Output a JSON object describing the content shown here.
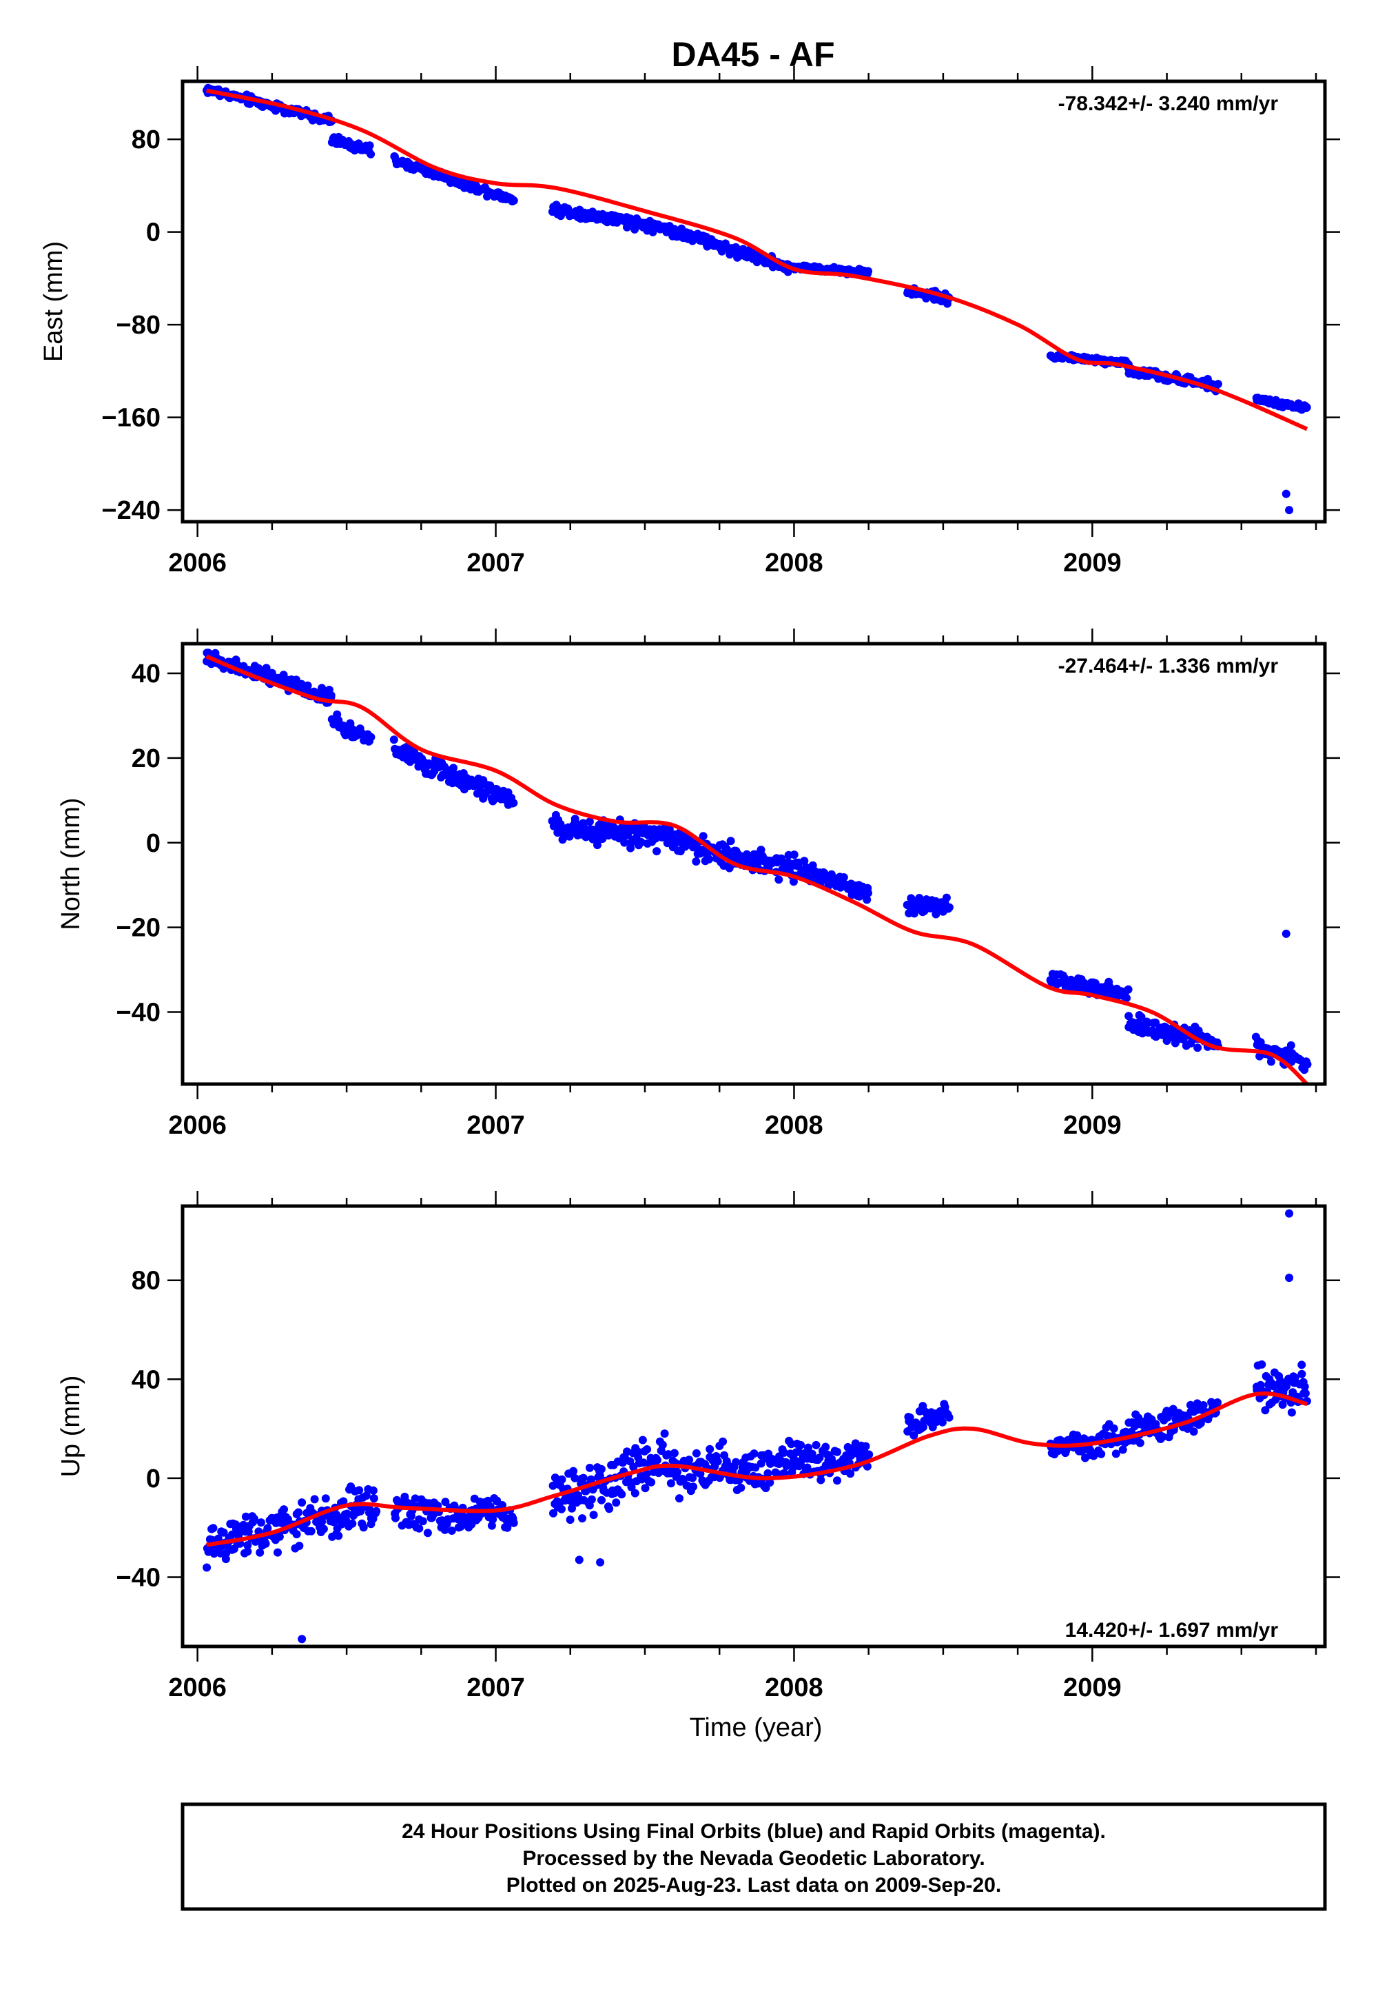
{
  "title": "DA45 - AF",
  "colors": {
    "final_orbits": "#0000ff",
    "fit_curve": "#ff0000",
    "frame": "#000000"
  },
  "footer": {
    "line1": "24 Hour Positions Using Final Orbits (blue) and Rapid Orbits (magenta).",
    "line2": "Processed by the Nevada Geodetic Laboratory.",
    "line3": "Plotted on 2025-Aug-23. Last data on 2009-Sep-20."
  },
  "chart_data": [
    {
      "type": "scatter",
      "title": "DA45 - AF",
      "xlabel": "",
      "ylabel": "East (mm)",
      "xlim": [
        2005.95,
        2009.78
      ],
      "ylim": [
        -250,
        130
      ],
      "xticks": [
        2006,
        2007,
        2008,
        2009
      ],
      "yticks": [
        -240,
        -160,
        -80,
        0,
        80
      ],
      "rate_text": "-78.342+/- 3.240 mm/yr",
      "series": [
        {
          "role": "daily positions (final orbits)",
          "segments": [
            {
              "x": [
                2006.03,
                2006.45
              ],
              "y": [
                123,
                96
              ],
              "noise": 3
            },
            {
              "x": [
                2006.45,
                2006.58
              ],
              "y": [
                80,
                70
              ],
              "noise": 3
            },
            {
              "x": [
                2006.66,
                2007.06
              ],
              "y": [
                62,
                28
              ],
              "noise": 3
            },
            {
              "x": [
                2007.19,
                2007.6
              ],
              "y": [
                20,
                2
              ],
              "noise": 4
            },
            {
              "x": [
                2007.6,
                2007.98
              ],
              "y": [
                0,
                -30
              ],
              "noise": 4
            },
            {
              "x": [
                2007.98,
                2008.25
              ],
              "y": [
                -30,
                -35
              ],
              "noise": 2
            },
            {
              "x": [
                2008.38,
                2008.52
              ],
              "y": [
                -50,
                -58
              ],
              "noise": 3
            },
            {
              "x": [
                2008.86,
                2009.12
              ],
              "y": [
                -107,
                -113
              ],
              "noise": 2
            },
            {
              "x": [
                2009.12,
                2009.42
              ],
              "y": [
                -120,
                -133
              ],
              "noise": 3
            },
            {
              "x": [
                2009.55,
                2009.72
              ],
              "y": [
                -145,
                -152
              ],
              "noise": 2
            }
          ],
          "outliers": [
            {
              "x": 2009.65,
              "y": -226
            },
            {
              "x": 2009.66,
              "y": -240
            }
          ]
        },
        {
          "role": "fit",
          "x": [
            2006.03,
            2006.3,
            2006.55,
            2006.8,
            2007.0,
            2007.2,
            2007.5,
            2007.8,
            2008.0,
            2008.2,
            2008.5,
            2008.75,
            2008.95,
            2009.1,
            2009.4,
            2009.72
          ],
          "y": [
            122,
            108,
            88,
            55,
            42,
            38,
            18,
            -5,
            -32,
            -38,
            -55,
            -80,
            -110,
            -115,
            -135,
            -170
          ]
        }
      ]
    },
    {
      "type": "scatter",
      "xlabel": "",
      "ylabel": "North (mm)",
      "xlim": [
        2005.95,
        2009.78
      ],
      "ylim": [
        -57,
        47
      ],
      "xticks": [
        2006,
        2007,
        2008,
        2009
      ],
      "yticks": [
        -40,
        -20,
        0,
        20,
        40
      ],
      "rate_text": "-27.464+/- 1.336 mm/yr",
      "series": [
        {
          "role": "daily positions (final orbits)",
          "segments": [
            {
              "x": [
                2006.03,
                2006.45
              ],
              "y": [
                44,
                34
              ],
              "noise": 1.5
            },
            {
              "x": [
                2006.45,
                2006.58
              ],
              "y": [
                29,
                24
              ],
              "noise": 1.5
            },
            {
              "x": [
                2006.66,
                2007.06
              ],
              "y": [
                22,
                10
              ],
              "noise": 2
            },
            {
              "x": [
                2007.19,
                2007.6
              ],
              "y": [
                4,
                1
              ],
              "noise": 2.5
            },
            {
              "x": [
                2007.6,
                2008.0
              ],
              "y": [
                0,
                -6
              ],
              "noise": 2.5
            },
            {
              "x": [
                2008.0,
                2008.25
              ],
              "y": [
                -6,
                -12
              ],
              "noise": 1.5
            },
            {
              "x": [
                2008.38,
                2008.52
              ],
              "y": [
                -15,
                -15
              ],
              "noise": 1.5
            },
            {
              "x": [
                2008.86,
                2009.12
              ],
              "y": [
                -32,
                -36
              ],
              "noise": 1.5
            },
            {
              "x": [
                2009.12,
                2009.42
              ],
              "y": [
                -43,
                -47
              ],
              "noise": 2
            },
            {
              "x": [
                2009.55,
                2009.72
              ],
              "y": [
                -48,
                -52
              ],
              "noise": 2
            }
          ],
          "outliers": [
            {
              "x": 2009.65,
              "y": -21.5
            }
          ]
        },
        {
          "role": "fit",
          "x": [
            2006.03,
            2006.2,
            2006.4,
            2006.55,
            2006.75,
            2007.0,
            2007.2,
            2007.4,
            2007.6,
            2007.8,
            2008.0,
            2008.2,
            2008.4,
            2008.6,
            2008.85,
            2009.0,
            2009.2,
            2009.4,
            2009.6,
            2009.72
          ],
          "y": [
            44,
            39,
            34,
            32,
            22,
            17,
            9,
            5,
            4,
            -5,
            -8,
            -14,
            -21,
            -24,
            -34,
            -36,
            -40,
            -48,
            -50,
            -57
          ]
        }
      ]
    },
    {
      "type": "scatter",
      "xlabel": "Time (year)",
      "ylabel": "Up (mm)",
      "xlim": [
        2005.95,
        2009.78
      ],
      "ylim": [
        -68,
        110
      ],
      "xticks": [
        2006,
        2007,
        2008,
        2009
      ],
      "yticks": [
        -40,
        0,
        40,
        80
      ],
      "rate_text": "14.420+/- 1.697 mm/yr",
      "series": [
        {
          "role": "daily positions (final orbits)",
          "segments": [
            {
              "x": [
                2006.03,
                2006.6
              ],
              "y": [
                -27,
                -10
              ],
              "noise": 7
            },
            {
              "x": [
                2006.66,
                2007.06
              ],
              "y": [
                -14,
                -15
              ],
              "noise": 6
            },
            {
              "x": [
                2007.19,
                2007.6
              ],
              "y": [
                -8,
                8
              ],
              "noise": 9
            },
            {
              "x": [
                2007.6,
                2008.25
              ],
              "y": [
                2,
                8
              ],
              "noise": 7
            },
            {
              "x": [
                2008.38,
                2008.52
              ],
              "y": [
                22,
                26
              ],
              "noise": 4
            },
            {
              "x": [
                2008.86,
                2009.12
              ],
              "y": [
                12,
                16
              ],
              "noise": 4
            },
            {
              "x": [
                2009.12,
                2009.42
              ],
              "y": [
                18,
                28
              ],
              "noise": 5
            },
            {
              "x": [
                2009.55,
                2009.72
              ],
              "y": [
                35,
                36
              ],
              "noise": 7
            }
          ],
          "outliers": [
            {
              "x": 2006.35,
              "y": -65
            },
            {
              "x": 2007.35,
              "y": -34
            },
            {
              "x": 2007.28,
              "y": -33
            },
            {
              "x": 2009.66,
              "y": 81
            },
            {
              "x": 2009.66,
              "y": 107
            }
          ]
        },
        {
          "role": "fit",
          "x": [
            2006.03,
            2006.25,
            2006.5,
            2006.7,
            2007.0,
            2007.2,
            2007.45,
            2007.6,
            2007.9,
            2008.2,
            2008.45,
            2008.6,
            2008.8,
            2009.0,
            2009.3,
            2009.55,
            2009.72
          ],
          "y": [
            -27,
            -22,
            -11,
            -12,
            -13,
            -7,
            2,
            5,
            0,
            5,
            17,
            20,
            14,
            14,
            22,
            34,
            30
          ]
        }
      ]
    }
  ]
}
